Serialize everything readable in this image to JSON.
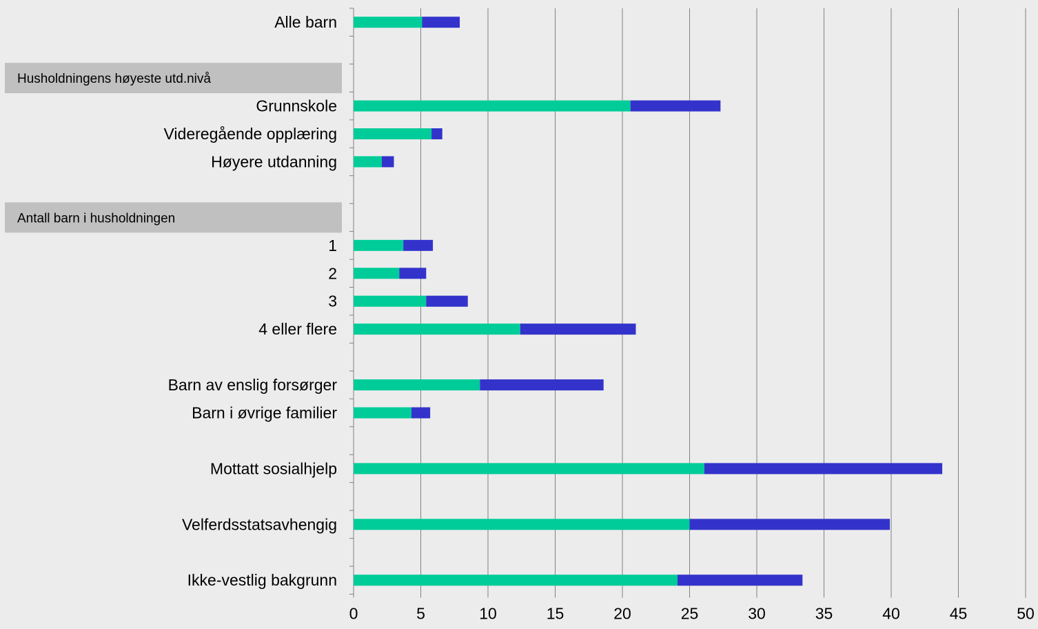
{
  "chart_data": {
    "type": "bar",
    "orientation": "horizontal",
    "stacked": true,
    "title": "",
    "xlabel": "",
    "ylabel": "",
    "xlim": [
      0,
      50
    ],
    "x_ticks": [
      0,
      5,
      10,
      15,
      20,
      25,
      30,
      35,
      40,
      45,
      50
    ],
    "grid": "vertical",
    "legend": "none",
    "rows": [
      {
        "kind": "category",
        "label": "Alle barn"
      },
      {
        "kind": "blank"
      },
      {
        "kind": "section",
        "label": "Husholdningens høyeste utd.nivå"
      },
      {
        "kind": "category",
        "label": "Grunnskole"
      },
      {
        "kind": "category",
        "label": "Videregående opplæring"
      },
      {
        "kind": "category",
        "label": "Høyere utdanning"
      },
      {
        "kind": "blank"
      },
      {
        "kind": "section",
        "label": "Antall barn i husholdningen"
      },
      {
        "kind": "category",
        "label": "1"
      },
      {
        "kind": "category",
        "label": "2"
      },
      {
        "kind": "category",
        "label": "3"
      },
      {
        "kind": "category",
        "label": "4 eller flere"
      },
      {
        "kind": "blank"
      },
      {
        "kind": "category",
        "label": "Barn av enslig forsørger"
      },
      {
        "kind": "category",
        "label": "Barn i øvrige familier"
      },
      {
        "kind": "blank"
      },
      {
        "kind": "category",
        "label": "Mottatt sosialhjelp"
      },
      {
        "kind": "blank"
      },
      {
        "kind": "category",
        "label": "Velferdsstatsavhengig"
      },
      {
        "kind": "blank"
      },
      {
        "kind": "category",
        "label": "Ikke-vestlig bakgrunn"
      }
    ],
    "series": [
      {
        "color": "#00cc99",
        "values": [
          5.1,
          null,
          null,
          20.6,
          5.8,
          2.1,
          null,
          null,
          3.7,
          3.4,
          5.4,
          12.4,
          null,
          9.4,
          4.3,
          null,
          26.1,
          null,
          25.0,
          null,
          24.1
        ]
      },
      {
        "color": "#3333cc",
        "values": [
          2.8,
          null,
          null,
          6.7,
          0.8,
          0.9,
          null,
          null,
          2.2,
          2.0,
          3.1,
          8.6,
          null,
          9.2,
          1.4,
          null,
          17.7,
          null,
          14.9,
          null,
          9.3
        ]
      }
    ]
  },
  "colors": {
    "background": "#ececec",
    "section_band": "#c0c0c0",
    "grid": "#808080",
    "axis": "#808080"
  }
}
